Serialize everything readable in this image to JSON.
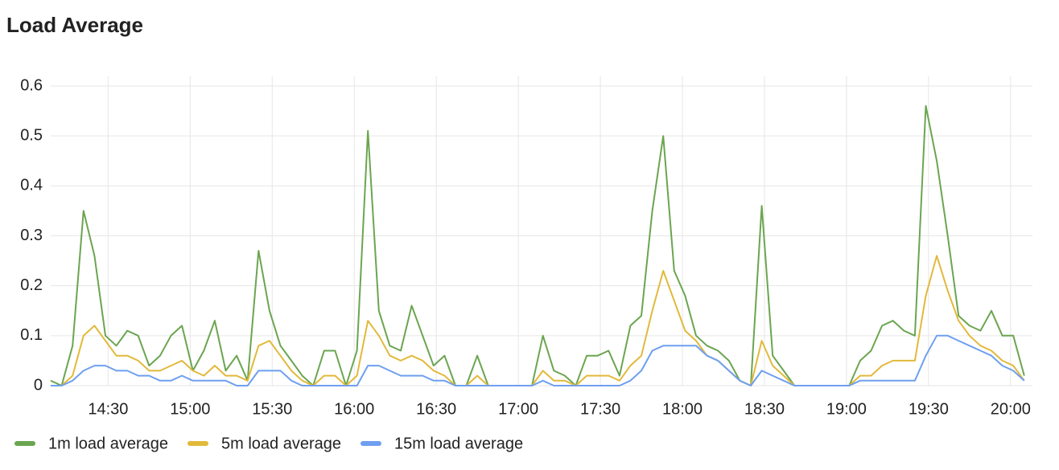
{
  "chart_data": {
    "type": "line",
    "title": "Load Average",
    "x": [
      849,
      853,
      857,
      861,
      865,
      869,
      873,
      877,
      881,
      885,
      889,
      893,
      897,
      901,
      905,
      909,
      913,
      917,
      921,
      925,
      929,
      933,
      937,
      941,
      945,
      949,
      953,
      957,
      961,
      965,
      969,
      973,
      977,
      981,
      985,
      989,
      993,
      997,
      1001,
      1005,
      1009,
      1013,
      1017,
      1021,
      1025,
      1029,
      1033,
      1037,
      1041,
      1045,
      1049,
      1053,
      1057,
      1061,
      1065,
      1069,
      1073,
      1077,
      1081,
      1085,
      1089,
      1093,
      1097,
      1101,
      1105,
      1109,
      1113,
      1117,
      1121,
      1125,
      1129,
      1133,
      1137,
      1141,
      1145,
      1149,
      1153,
      1157,
      1161,
      1165,
      1169,
      1173,
      1177,
      1181,
      1185,
      1189,
      1193,
      1197,
      1201,
      1205
    ],
    "xlim": [
      849,
      1208
    ],
    "xticks": [
      {
        "value": 870,
        "label": "14:30"
      },
      {
        "value": 900,
        "label": "15:00"
      },
      {
        "value": 930,
        "label": "15:30"
      },
      {
        "value": 960,
        "label": "16:00"
      },
      {
        "value": 990,
        "label": "16:30"
      },
      {
        "value": 1020,
        "label": "17:00"
      },
      {
        "value": 1050,
        "label": "17:30"
      },
      {
        "value": 1080,
        "label": "18:00"
      },
      {
        "value": 1110,
        "label": "18:30"
      },
      {
        "value": 1140,
        "label": "19:00"
      },
      {
        "value": 1170,
        "label": "19:30"
      },
      {
        "value": 1200,
        "label": "20:00"
      }
    ],
    "ylim": [
      0,
      0.6
    ],
    "yticks": [
      0,
      0.1,
      0.2,
      0.3,
      0.4,
      0.5,
      0.6
    ],
    "grid": true,
    "legend": "bottom-left",
    "series": [
      {
        "name": "1m load average",
        "color": "#6ba550",
        "values": [
          0.01,
          0,
          0.08,
          0.35,
          0.26,
          0.1,
          0.08,
          0.11,
          0.1,
          0.04,
          0.06,
          0.1,
          0.12,
          0.03,
          0.07,
          0.13,
          0.03,
          0.06,
          0.01,
          0.27,
          0.15,
          0.08,
          0.05,
          0.02,
          0,
          0.07,
          0.07,
          0,
          0.07,
          0.51,
          0.15,
          0.08,
          0.07,
          0.16,
          0.1,
          0.04,
          0.06,
          0,
          0,
          0.06,
          0,
          0,
          0,
          0,
          0,
          0.1,
          0.03,
          0.02,
          0,
          0.06,
          0.06,
          0.07,
          0.02,
          0.12,
          0.14,
          0.35,
          0.5,
          0.23,
          0.18,
          0.1,
          0.08,
          0.07,
          0.05,
          0.01,
          0,
          0.36,
          0.06,
          0.03,
          0,
          0,
          0,
          0,
          0,
          0,
          0.05,
          0.07,
          0.12,
          0.13,
          0.11,
          0.1,
          0.56,
          0.45,
          0.3,
          0.14,
          0.12,
          0.11,
          0.15,
          0.1,
          0.1,
          0.02
        ]
      },
      {
        "name": "5m load average",
        "color": "#e2b93b",
        "values": [
          0,
          0,
          0.02,
          0.1,
          0.12,
          0.09,
          0.06,
          0.06,
          0.05,
          0.03,
          0.03,
          0.04,
          0.05,
          0.03,
          0.02,
          0.04,
          0.02,
          0.02,
          0.01,
          0.08,
          0.09,
          0.06,
          0.03,
          0.01,
          0,
          0.02,
          0.02,
          0,
          0.02,
          0.13,
          0.1,
          0.06,
          0.05,
          0.06,
          0.05,
          0.03,
          0.02,
          0,
          0,
          0.02,
          0,
          0,
          0,
          0,
          0,
          0.03,
          0.01,
          0.01,
          0,
          0.02,
          0.02,
          0.02,
          0.01,
          0.04,
          0.06,
          0.15,
          0.23,
          0.17,
          0.11,
          0.09,
          0.06,
          0.05,
          0.03,
          0.01,
          0,
          0.09,
          0.04,
          0.02,
          0,
          0,
          0,
          0,
          0,
          0,
          0.02,
          0.02,
          0.04,
          0.05,
          0.05,
          0.05,
          0.18,
          0.26,
          0.19,
          0.13,
          0.1,
          0.08,
          0.07,
          0.05,
          0.04,
          0.01
        ]
      },
      {
        "name": "15m load average",
        "color": "#6e9ff0",
        "values": [
          0,
          0,
          0.01,
          0.03,
          0.04,
          0.04,
          0.03,
          0.03,
          0.02,
          0.02,
          0.01,
          0.01,
          0.02,
          0.01,
          0.01,
          0.01,
          0.01,
          0,
          0,
          0.03,
          0.03,
          0.03,
          0.01,
          0,
          0,
          0,
          0,
          0,
          0,
          0.04,
          0.04,
          0.03,
          0.02,
          0.02,
          0.02,
          0.01,
          0.01,
          0,
          0,
          0,
          0,
          0,
          0,
          0,
          0,
          0.01,
          0,
          0,
          0,
          0,
          0,
          0,
          0,
          0.01,
          0.03,
          0.07,
          0.08,
          0.08,
          0.08,
          0.08,
          0.06,
          0.05,
          0.03,
          0.01,
          0,
          0.03,
          0.02,
          0.01,
          0,
          0,
          0,
          0,
          0,
          0,
          0.01,
          0.01,
          0.01,
          0.01,
          0.01,
          0.01,
          0.06,
          0.1,
          0.1,
          0.09,
          0.08,
          0.07,
          0.06,
          0.04,
          0.03,
          0.01
        ]
      }
    ]
  }
}
